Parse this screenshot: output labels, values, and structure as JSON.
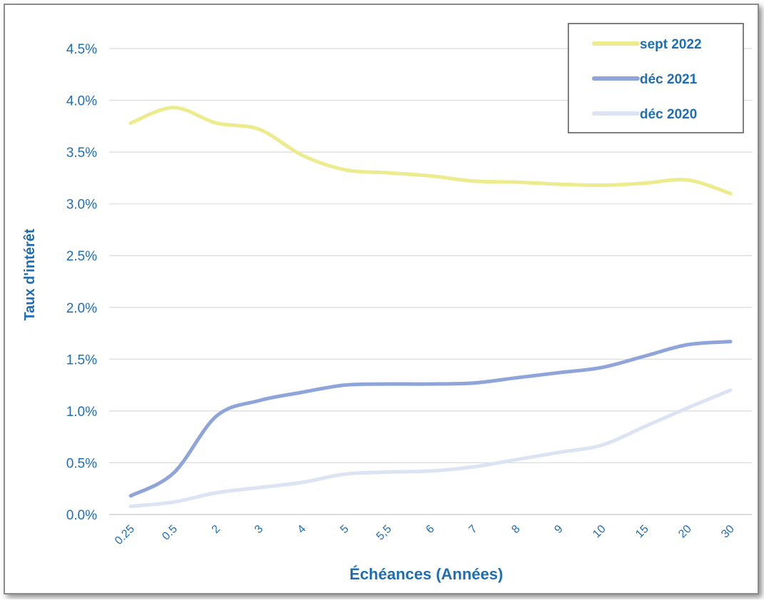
{
  "chart_data": {
    "type": "line",
    "categories": [
      "0.25",
      "0.5",
      "2",
      "3",
      "4",
      "5",
      "5,5",
      "6",
      "7",
      "8",
      "9",
      "10",
      "15",
      "20",
      "30"
    ],
    "series": [
      {
        "name": "sept 2022",
        "color": "#ECEC8E",
        "values": [
          3.78,
          3.93,
          3.78,
          3.72,
          3.47,
          3.33,
          3.3,
          3.27,
          3.22,
          3.21,
          3.19,
          3.18,
          3.2,
          3.23,
          3.1
        ]
      },
      {
        "name": "déc 2021",
        "color": "#8FA4D9",
        "values": [
          0.18,
          0.4,
          0.95,
          1.1,
          1.18,
          1.25,
          1.26,
          1.26,
          1.27,
          1.32,
          1.37,
          1.42,
          1.53,
          1.64,
          1.67
        ]
      },
      {
        "name": "déc 2020",
        "color": "#DCE3F3",
        "values": [
          0.08,
          0.12,
          0.21,
          0.26,
          0.31,
          0.39,
          0.41,
          0.42,
          0.46,
          0.53,
          0.6,
          0.67,
          0.85,
          1.03,
          1.2
        ]
      }
    ],
    "xlabel": "Échéances (Années)",
    "ylabel": "Taux d'intérêt",
    "yticks": [
      "0.0%",
      "0.5%",
      "1.0%",
      "1.5%",
      "2.0%",
      "2.5%",
      "3.0%",
      "3.5%",
      "4.0%",
      "4.5%"
    ],
    "ylim": [
      0,
      4.5
    ],
    "grid": true,
    "legend_position": "top-right",
    "text_color": "#1F6EB4"
  }
}
